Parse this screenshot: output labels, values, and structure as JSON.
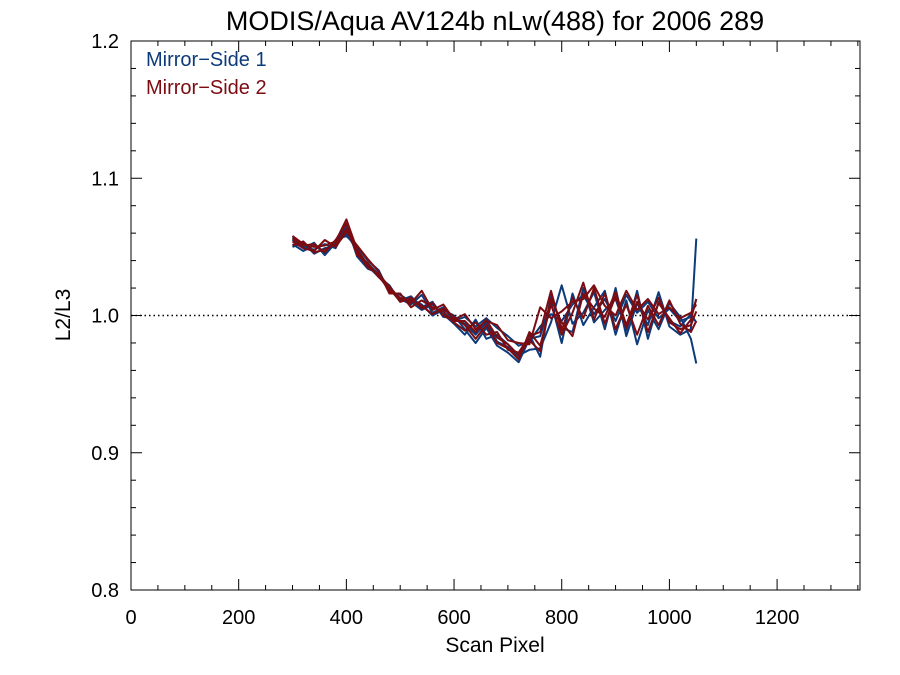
{
  "chart_data": {
    "type": "line",
    "title": "MODIS/Aqua AV124b nLw(488) for 2006 289",
    "xlabel": "Scan Pixel",
    "ylabel": "L2/L3",
    "xlim": [
      0,
      1354
    ],
    "ylim": [
      0.8,
      1.2
    ],
    "x_ticks": [
      0,
      200,
      400,
      600,
      800,
      1000,
      1200
    ],
    "x_tick_labels": [
      "0",
      "200",
      "400",
      "600",
      "800",
      "1000",
      "1200"
    ],
    "y_ticks": [
      0.8,
      0.9,
      1.0,
      1.1,
      1.2
    ],
    "y_tick_labels": [
      "0.8",
      "0.9",
      "1.0",
      "1.1",
      "1.2"
    ],
    "reference_line": {
      "y": 1.0,
      "style": "dotted"
    },
    "legend": {
      "position": "top-left",
      "entries": [
        "Mirror−Side 1",
        "Mirror−Side 2"
      ]
    },
    "x": [
      300,
      320,
      340,
      360,
      380,
      400,
      420,
      440,
      460,
      480,
      500,
      520,
      540,
      560,
      580,
      600,
      620,
      640,
      660,
      680,
      700,
      720,
      740,
      760,
      780,
      800,
      820,
      840,
      860,
      880,
      900,
      920,
      940,
      960,
      980,
      1000,
      1020,
      1040,
      1050
    ],
    "series": [
      {
        "name": "Mirror−Side 1",
        "color": "#0d3b7a",
        "lines": [
          [
            1.055,
            1.05,
            1.048,
            1.052,
            1.049,
            1.064,
            1.045,
            1.038,
            1.03,
            1.02,
            1.012,
            1.008,
            1.015,
            1.002,
            1.006,
            0.996,
            0.999,
            0.992,
            0.998,
            0.991,
            0.985,
            0.978,
            0.981,
            0.992,
            1.001,
            0.996,
            1.008,
            1.015,
            1.001,
            1.012,
            0.996,
            1.015,
            1.002,
            1.01,
            0.998,
            1.005,
            0.996,
            0.999,
            1.012
          ],
          [
            1.052,
            1.047,
            1.051,
            1.046,
            1.055,
            1.058,
            1.05,
            1.04,
            1.033,
            1.017,
            1.015,
            1.01,
            1.004,
            1.008,
            1.001,
            0.994,
            0.986,
            0.997,
            0.983,
            0.986,
            0.979,
            0.971,
            0.975,
            0.976,
            0.995,
            1.022,
            0.994,
            1.002,
            1.017,
            0.99,
            1.02,
            0.985,
            1.009,
            0.993,
            1.017,
            0.992,
            0.986,
            0.99,
            1.056
          ],
          [
            1.05,
            1.053,
            1.045,
            1.049,
            1.051,
            1.06,
            1.047,
            1.036,
            1.028,
            1.022,
            1.01,
            1.012,
            1.008,
            1.0,
            1.004,
            1.0,
            0.99,
            0.98,
            0.991,
            0.978,
            0.973,
            0.966,
            0.983,
            0.985,
            1.01,
            0.98,
            1.016,
            0.993,
            1.006,
            1.018,
            0.986,
            1.011,
            0.979,
            1.004,
            0.99,
            1.009,
            0.999,
            0.983,
            0.965
          ],
          [
            1.057,
            1.049,
            1.053,
            1.044,
            1.053,
            1.066,
            1.043,
            1.034,
            1.031,
            1.019,
            1.011,
            1.014,
            1.006,
            1.01,
            0.999,
            0.998,
            0.994,
            0.986,
            0.995,
            0.981,
            0.977,
            0.969,
            0.986,
            0.97,
            1.015,
            0.991,
            0.988,
            1.02,
            0.995,
            1.004,
            1.012,
            0.989,
            1.018,
            0.983,
            1.01,
            0.996,
            0.992,
            1.001,
            0.995
          ]
        ]
      },
      {
        "name": "Mirror−Side 2",
        "color": "#7a0c12",
        "lines": [
          [
            1.058,
            1.052,
            1.05,
            1.051,
            1.054,
            1.07,
            1.048,
            1.037,
            1.029,
            1.018,
            1.013,
            1.009,
            1.018,
            1.004,
            1.008,
            0.997,
            1.001,
            0.99,
            0.996,
            0.993,
            0.982,
            0.98,
            0.979,
            1.006,
            0.998,
            1.003,
            1.01,
            1.012,
            1.022,
            1.007,
            1.0,
            1.018,
            1.004,
            1.012,
            1.001,
            1.006,
            0.998,
            1.002,
            1.008
          ],
          [
            1.054,
            1.049,
            1.047,
            1.055,
            1.05,
            1.061,
            1.051,
            1.041,
            1.032,
            1.016,
            1.016,
            1.006,
            1.011,
            1.006,
            1.003,
            0.995,
            0.989,
            0.995,
            0.986,
            0.988,
            0.975,
            0.973,
            0.985,
            0.988,
            1.018,
            0.989,
            1.013,
            0.998,
            1.02,
            0.994,
            1.014,
            0.991,
            1.01,
            0.997,
            1.013,
            0.995,
            0.99,
            0.993,
            1.003
          ],
          [
            1.051,
            1.054,
            1.046,
            1.048,
            1.052,
            1.063,
            1.046,
            1.035,
            1.03,
            1.021,
            1.012,
            1.011,
            1.007,
            1.001,
            1.005,
            0.999,
            0.993,
            0.983,
            0.993,
            0.98,
            0.976,
            0.968,
            0.988,
            0.978,
            1.008,
            0.986,
            1.002,
            1.024,
            0.997,
            1.016,
            0.99,
            1.008,
            0.986,
            1.007,
            0.993,
            1.011,
            0.994,
            0.988,
            0.996
          ],
          [
            1.056,
            1.051,
            1.052,
            1.046,
            1.055,
            1.067,
            1.044,
            1.038,
            1.028,
            1.02,
            1.01,
            1.013,
            1.005,
            1.009,
            1.0,
            0.996,
            0.996,
            0.988,
            0.997,
            0.984,
            0.979,
            0.971,
            0.982,
            0.974,
            1.012,
            0.995,
            0.985,
            1.016,
            1.005,
            0.999,
            1.017,
            0.993,
            1.015,
            0.988,
            1.009,
            0.998,
            0.987,
            0.997,
            1.012
          ]
        ]
      }
    ]
  }
}
